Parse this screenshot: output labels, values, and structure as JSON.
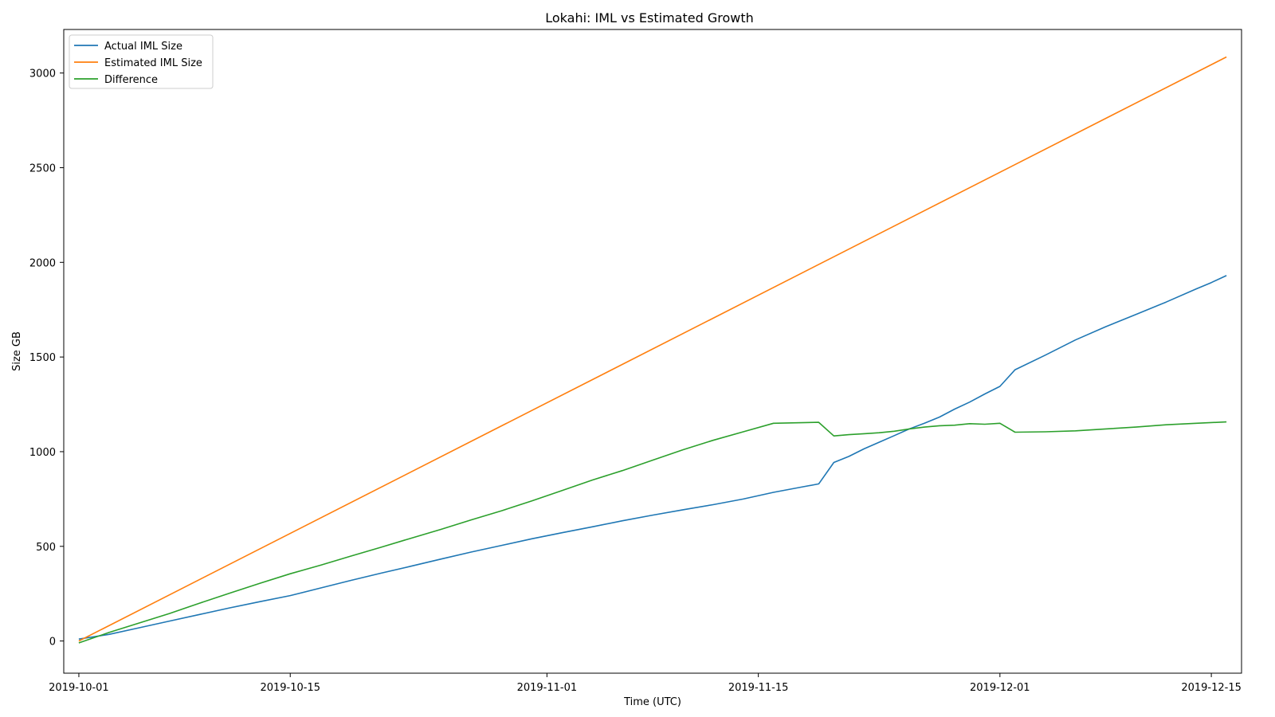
{
  "chart_data": {
    "type": "line",
    "title": "Lokahi: IML vs Estimated Growth",
    "xlabel": "Time (UTC)",
    "ylabel": "Size GB",
    "x_type": "date",
    "xlim": [
      "2019-09-30",
      "2019-12-17"
    ],
    "ylim": [
      -170,
      3230
    ],
    "x_ticks": [
      "2019-10-01",
      "2019-10-15",
      "2019-11-01",
      "2019-11-15",
      "2019-12-01",
      "2019-12-15"
    ],
    "y_ticks": [
      0,
      500,
      1000,
      1500,
      2000,
      2500,
      3000
    ],
    "grid": false,
    "legend_position": "top-left",
    "series": [
      {
        "name": "Actual IML Size",
        "color": "#1f77b4",
        "points": [
          [
            "2019-10-01",
            10
          ],
          [
            "2019-10-03",
            35
          ],
          [
            "2019-10-05",
            70
          ],
          [
            "2019-10-07",
            105
          ],
          [
            "2019-10-09",
            140
          ],
          [
            "2019-10-11",
            175
          ],
          [
            "2019-10-13",
            208
          ],
          [
            "2019-10-15",
            240
          ],
          [
            "2019-10-17",
            280
          ],
          [
            "2019-10-19",
            320
          ],
          [
            "2019-10-21",
            358
          ],
          [
            "2019-10-23",
            395
          ],
          [
            "2019-10-25",
            433
          ],
          [
            "2019-10-27",
            470
          ],
          [
            "2019-10-29",
            505
          ],
          [
            "2019-10-31",
            540
          ],
          [
            "2019-11-02",
            572
          ],
          [
            "2019-11-04",
            603
          ],
          [
            "2019-11-06",
            635
          ],
          [
            "2019-11-08",
            665
          ],
          [
            "2019-11-10",
            693
          ],
          [
            "2019-11-12",
            720
          ],
          [
            "2019-11-14",
            750
          ],
          [
            "2019-11-16",
            785
          ],
          [
            "2019-11-18",
            815
          ],
          [
            "2019-11-19",
            830
          ],
          [
            "2019-11-20",
            943
          ],
          [
            "2019-11-21",
            975
          ],
          [
            "2019-11-22",
            1015
          ],
          [
            "2019-11-23",
            1050
          ],
          [
            "2019-11-24",
            1085
          ],
          [
            "2019-11-25",
            1120
          ],
          [
            "2019-11-26",
            1150
          ],
          [
            "2019-11-27",
            1183
          ],
          [
            "2019-11-28",
            1225
          ],
          [
            "2019-11-29",
            1262
          ],
          [
            "2019-11-30",
            1305
          ],
          [
            "2019-12-01",
            1345
          ],
          [
            "2019-12-02",
            1433
          ],
          [
            "2019-12-04",
            1510
          ],
          [
            "2019-12-06",
            1590
          ],
          [
            "2019-12-08",
            1660
          ],
          [
            "2019-12-10",
            1725
          ],
          [
            "2019-12-12",
            1790
          ],
          [
            "2019-12-14",
            1860
          ],
          [
            "2019-12-15",
            1893
          ],
          [
            "2019-12-16",
            1930
          ]
        ]
      },
      {
        "name": "Estimated IML Size",
        "color": "#ff7f0e",
        "points": [
          [
            "2019-10-01",
            0
          ],
          [
            "2019-12-16",
            3085
          ]
        ]
      },
      {
        "name": "Difference",
        "color": "#2ca02c",
        "points": [
          [
            "2019-10-01",
            -10
          ],
          [
            "2019-10-03",
            45
          ],
          [
            "2019-10-05",
            95
          ],
          [
            "2019-10-07",
            145
          ],
          [
            "2019-10-09",
            200
          ],
          [
            "2019-10-11",
            253
          ],
          [
            "2019-10-13",
            305
          ],
          [
            "2019-10-15",
            355
          ],
          [
            "2019-10-17",
            400
          ],
          [
            "2019-10-19",
            448
          ],
          [
            "2019-10-21",
            495
          ],
          [
            "2019-10-23",
            543
          ],
          [
            "2019-10-25",
            590
          ],
          [
            "2019-10-27",
            640
          ],
          [
            "2019-10-29",
            688
          ],
          [
            "2019-10-31",
            740
          ],
          [
            "2019-11-02",
            795
          ],
          [
            "2019-11-04",
            850
          ],
          [
            "2019-11-06",
            900
          ],
          [
            "2019-11-08",
            955
          ],
          [
            "2019-11-10",
            1010
          ],
          [
            "2019-11-12",
            1060
          ],
          [
            "2019-11-14",
            1105
          ],
          [
            "2019-11-16",
            1150
          ],
          [
            "2019-11-19",
            1155
          ],
          [
            "2019-11-20",
            1083
          ],
          [
            "2019-11-21",
            1090
          ],
          [
            "2019-11-22",
            1095
          ],
          [
            "2019-11-23",
            1100
          ],
          [
            "2019-11-24",
            1108
          ],
          [
            "2019-11-25",
            1120
          ],
          [
            "2019-11-26",
            1130
          ],
          [
            "2019-11-27",
            1137
          ],
          [
            "2019-11-28",
            1140
          ],
          [
            "2019-11-29",
            1148
          ],
          [
            "2019-11-30",
            1145
          ],
          [
            "2019-12-01",
            1150
          ],
          [
            "2019-12-02",
            1103
          ],
          [
            "2019-12-04",
            1105
          ],
          [
            "2019-12-06",
            1110
          ],
          [
            "2019-12-08",
            1120
          ],
          [
            "2019-12-10",
            1130
          ],
          [
            "2019-12-12",
            1142
          ],
          [
            "2019-12-14",
            1150
          ],
          [
            "2019-12-16",
            1157
          ]
        ]
      }
    ]
  }
}
